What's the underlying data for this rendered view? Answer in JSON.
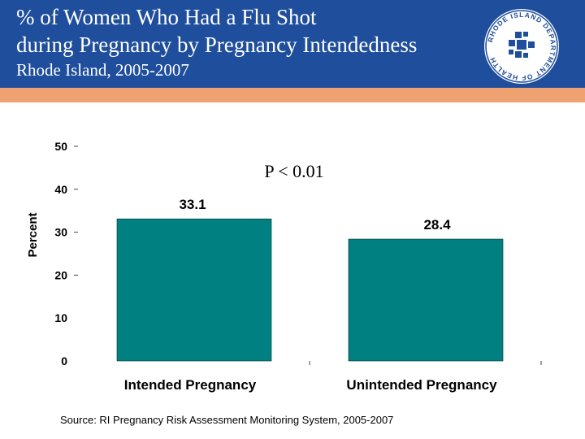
{
  "header": {
    "title_line1": "% of Women Who Had a Flu Shot",
    "title_line2": "during Pregnancy  by Pregnancy Intendedness",
    "subtitle": "Rhode Island, 2005-2007",
    "logo_text": "RHODE ISLAND DEPARTMENT OF HEALTH"
  },
  "colors": {
    "banner": "#1f4e9c",
    "band": "#eea171",
    "bar": "#008080"
  },
  "chart_data": {
    "type": "bar",
    "categories": [
      "Intended Pregnancy",
      "Unintended Pregnancy"
    ],
    "values": [
      33.1,
      28.4
    ],
    "value_labels": [
      "33.1",
      "28.4"
    ],
    "ylabel": "Percent",
    "ylim": [
      0,
      50
    ],
    "yticks": [
      0,
      10,
      20,
      30,
      40,
      50
    ],
    "annotation": "P < 0.01",
    "grid": false
  },
  "footer": {
    "source": "Source: RI Pregnancy Risk Assessment Monitoring System, 2005-2007"
  }
}
